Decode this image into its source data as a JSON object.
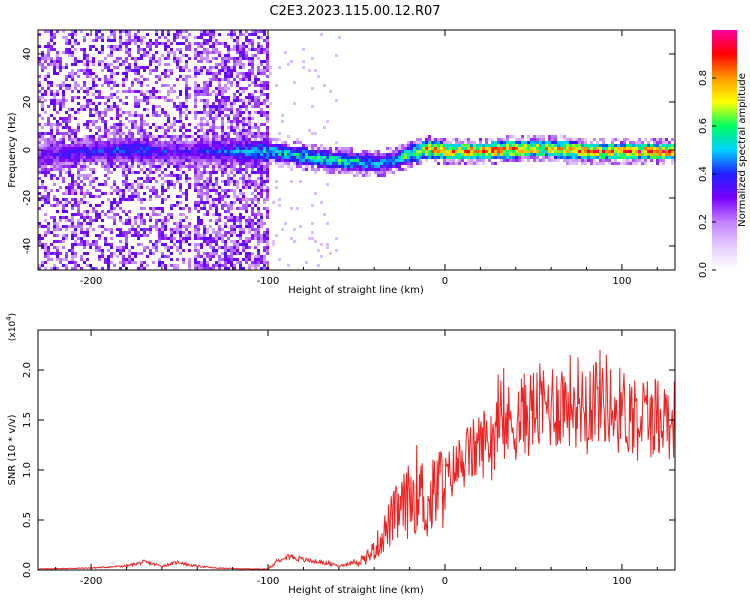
{
  "title": "C2E3.2023.115.00.12.R07",
  "chart_data": [
    {
      "type": "heatmap",
      "xlabel": "Height of straight line (km)",
      "ylabel": "Frequency (Hz)",
      "xlim": [
        -230,
        130
      ],
      "ylim": [
        -50,
        50
      ],
      "xticks": [
        -200,
        -100,
        0,
        100
      ],
      "yticks": [
        -40,
        -20,
        0,
        20,
        40
      ],
      "colorbar": {
        "label": "Normalized spectral amplitude",
        "range": [
          0.0,
          1.0
        ],
        "ticks": [
          "0.0",
          "0.2",
          "0.4",
          "0.6",
          "0.8"
        ],
        "colormap": [
          "#ffffff",
          "#e6ccff",
          "#c080ff",
          "#7a00ff",
          "#2020ff",
          "#00d0ff",
          "#00ff60",
          "#ffff00",
          "#ff9900",
          "#ff0000",
          "#ff00a0"
        ]
      },
      "ridge": {
        "description_free": true,
        "x": [
          -230,
          -200,
          -180,
          -160,
          -145,
          -100,
          -80,
          -60,
          -40,
          -30,
          -20,
          -10,
          0,
          20,
          40,
          60,
          80,
          100,
          130
        ],
        "freq": [
          -2,
          0,
          1,
          0,
          0,
          0,
          -2,
          -4,
          -5,
          -4,
          -1,
          1,
          0,
          0,
          1,
          1,
          0,
          0,
          0
        ],
        "amp": [
          0.35,
          0.4,
          0.45,
          0.4,
          0.35,
          0.55,
          0.6,
          0.6,
          0.55,
          0.5,
          0.7,
          0.85,
          0.85,
          0.9,
          0.85,
          0.8,
          0.85,
          0.85,
          0.9
        ]
      },
      "noise_bands": [
        {
          "x": [
            -230,
            -145
          ],
          "level": 0.45
        },
        {
          "x": [
            -143,
            -100
          ],
          "level": 0.6
        }
      ]
    },
    {
      "type": "line",
      "xlabel": "Height of straight line (km)",
      "ylabel": "SNR (10 * v/v)",
      "y_multiplier": "(x10",
      "y_multiplier_exp": "4",
      "xlim": [
        -230,
        130
      ],
      "ylim": [
        0,
        2.4
      ],
      "xticks": [
        -200,
        -100,
        0,
        100
      ],
      "yticks": [
        "0.0",
        "0.5",
        "1.0",
        "1.5",
        "2.0"
      ],
      "color": "#ee2222",
      "series": [
        {
          "x": [
            -230,
            -200,
            -180,
            -170,
            -160,
            -150,
            -145,
            -130,
            -110,
            -100,
            -90,
            -80,
            -70,
            -60,
            -50,
            -45,
            -40,
            -35,
            -30,
            -25,
            -20,
            -15,
            -10,
            -5,
            0,
            10,
            20,
            30,
            40,
            50,
            60,
            70,
            80,
            90,
            95,
            100,
            110,
            120,
            130
          ],
          "y": [
            0.01,
            0.02,
            0.04,
            0.08,
            0.04,
            0.08,
            0.05,
            0.02,
            0.01,
            0.01,
            0.15,
            0.1,
            0.08,
            0.04,
            0.08,
            0.12,
            0.2,
            0.35,
            0.5,
            0.6,
            0.7,
            0.85,
            0.6,
            0.8,
            0.9,
            1.1,
            1.25,
            1.4,
            1.5,
            1.6,
            1.65,
            1.7,
            1.7,
            1.75,
            1.6,
            1.6,
            1.55,
            1.55,
            1.5
          ]
        }
      ]
    }
  ]
}
